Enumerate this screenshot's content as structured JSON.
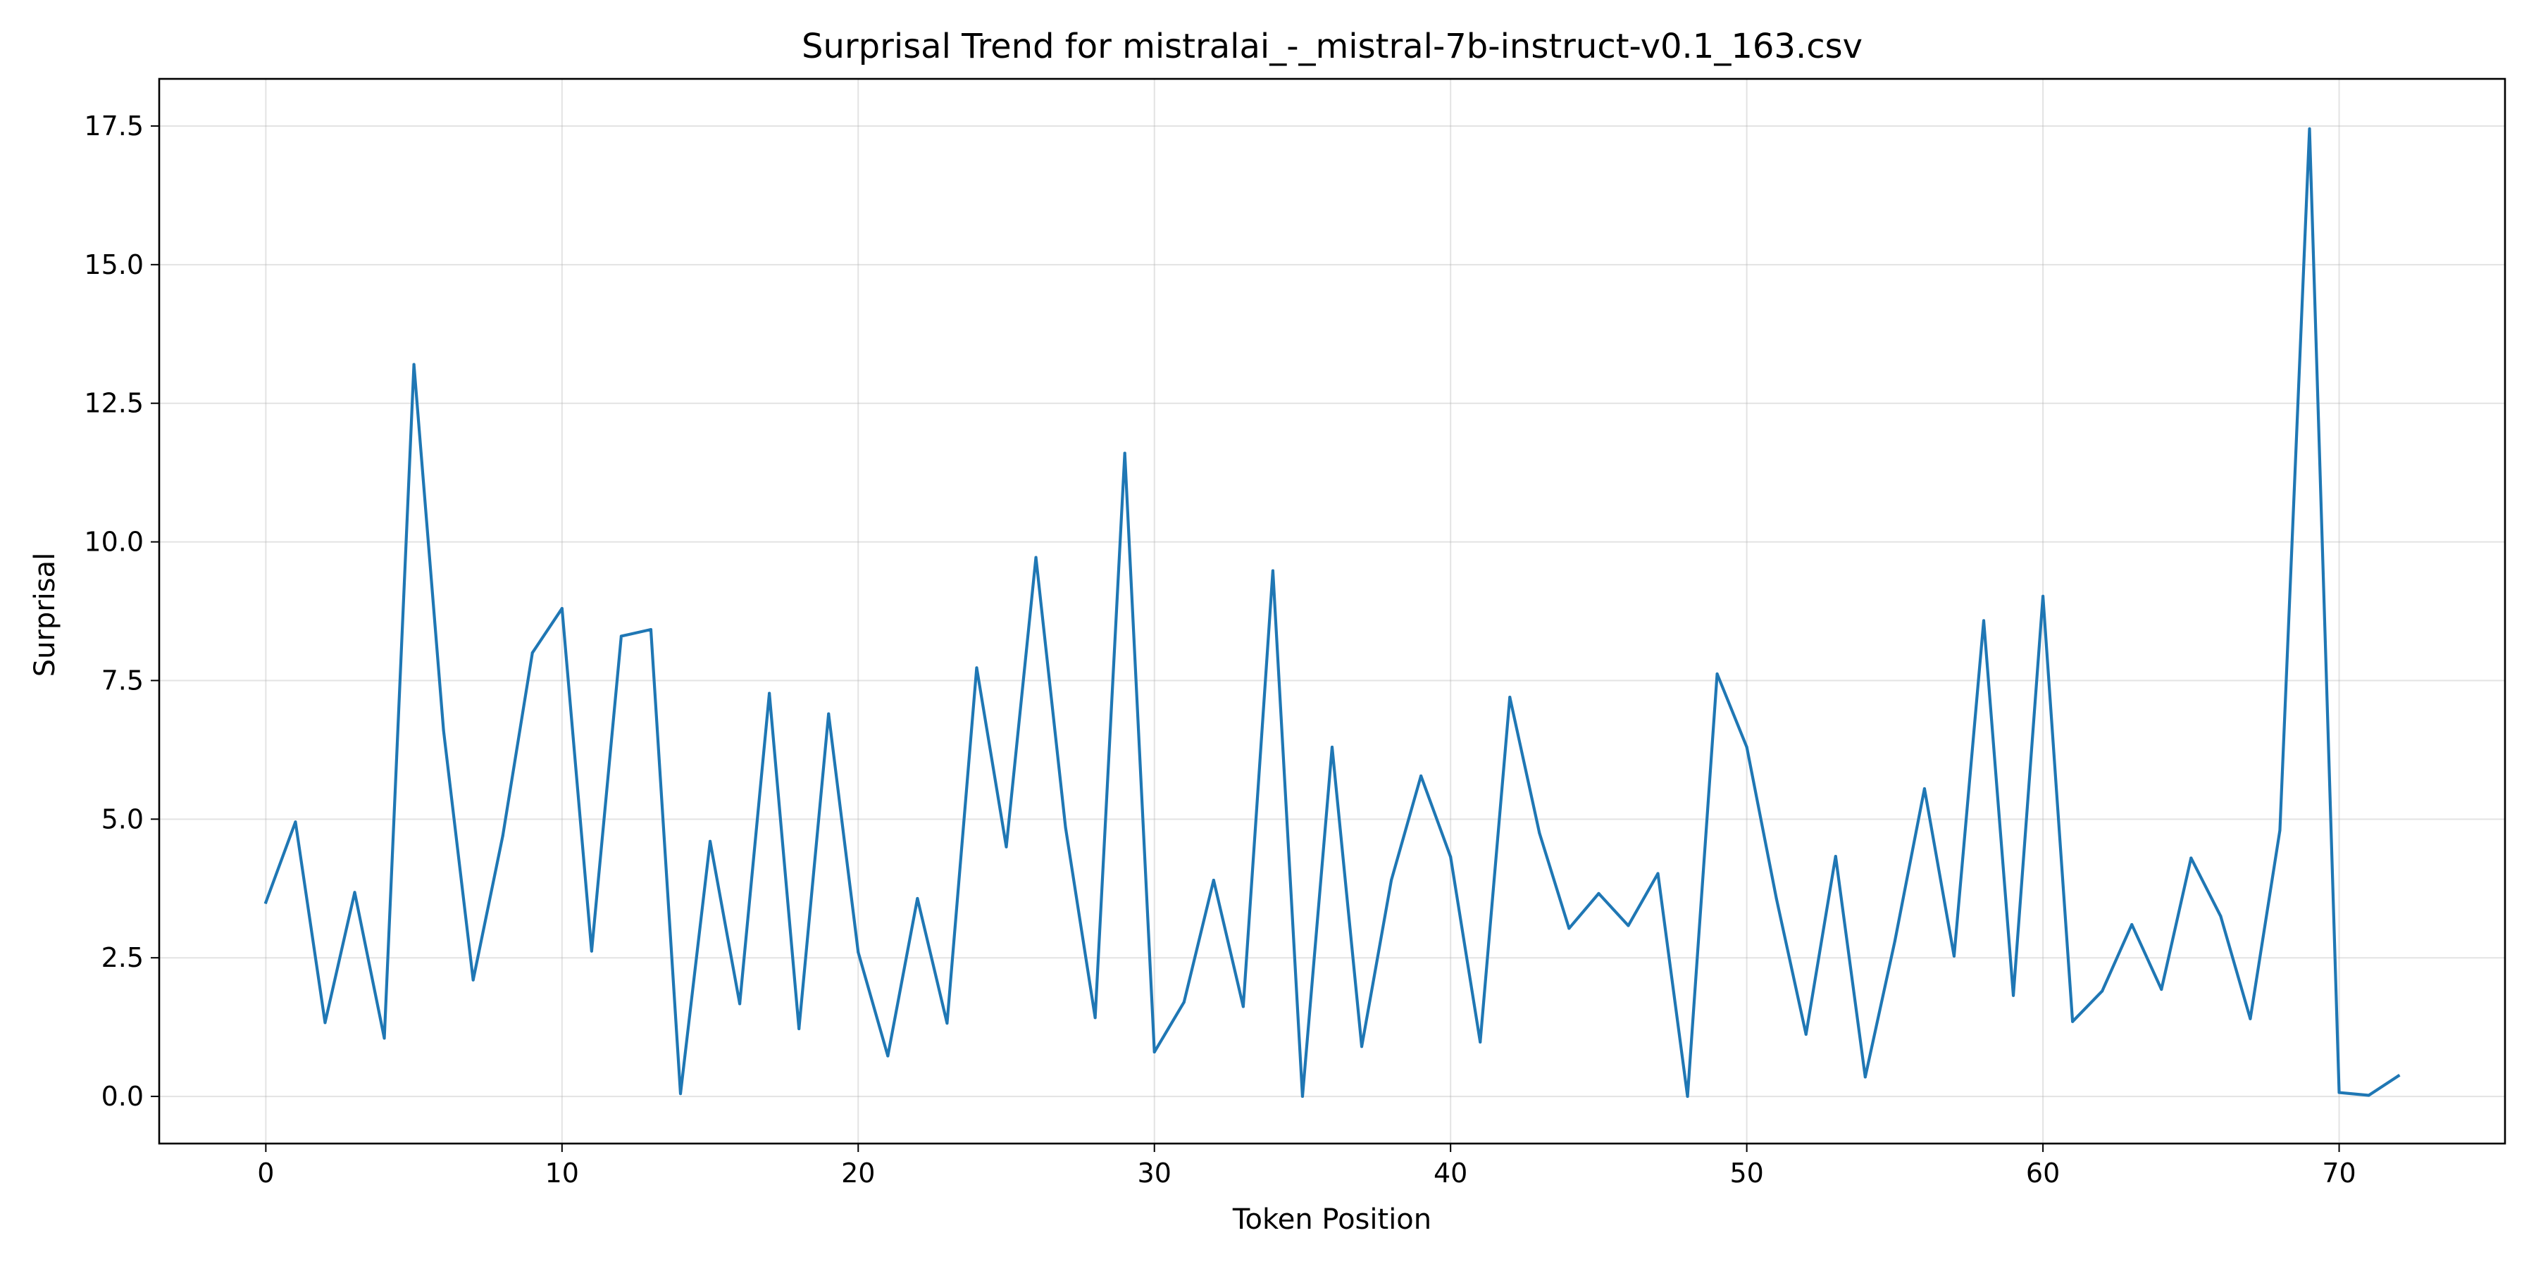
{
  "chart_data": {
    "type": "line",
    "title": "Surprisal Trend for mistralai_-_mistral-7b-instruct-v0.1_163.csv",
    "xlabel": "Token Position",
    "ylabel": "Surprisal",
    "xlim": [
      -3.6,
      75.6
    ],
    "ylim": [
      -0.85,
      18.35
    ],
    "xticks": [
      0,
      10,
      20,
      30,
      40,
      50,
      60,
      70
    ],
    "yticks": [
      0.0,
      2.5,
      5.0,
      7.5,
      10.0,
      12.5,
      15.0,
      17.5
    ],
    "ytick_labels": [
      "0.0",
      "2.5",
      "5.0",
      "7.5",
      "10.0",
      "12.5",
      "15.0",
      "17.5"
    ],
    "grid": true,
    "series": [
      {
        "color": "#1f77b4",
        "x": [
          0,
          1,
          2,
          3,
          4,
          5,
          6,
          7,
          8,
          9,
          10,
          11,
          12,
          13,
          14,
          15,
          16,
          17,
          18,
          19,
          20,
          21,
          22,
          23,
          24,
          25,
          26,
          27,
          28,
          29,
          30,
          31,
          32,
          33,
          34,
          35,
          36,
          37,
          38,
          39,
          40,
          41,
          42,
          43,
          44,
          45,
          46,
          47,
          48,
          49,
          50,
          51,
          52,
          53,
          54,
          55,
          56,
          57,
          58,
          59,
          60,
          61,
          62,
          63,
          64,
          65,
          66,
          67,
          68,
          69,
          70,
          71,
          72
        ],
        "values": [
          3.5,
          4.95,
          1.33,
          3.68,
          1.05,
          13.2,
          6.6,
          2.1,
          4.7,
          8.0,
          8.8,
          2.62,
          8.3,
          8.42,
          0.05,
          4.6,
          1.67,
          7.27,
          1.22,
          6.9,
          2.6,
          0.73,
          3.57,
          1.32,
          7.73,
          4.5,
          9.72,
          4.85,
          1.42,
          11.6,
          0.8,
          1.7,
          3.9,
          1.62,
          9.48,
          0.0,
          6.3,
          0.9,
          3.9,
          5.78,
          4.32,
          0.98,
          7.2,
          4.75,
          3.03,
          3.66,
          3.08,
          4.02,
          0.0,
          7.62,
          6.3,
          3.57,
          1.12,
          4.33,
          0.35,
          2.8,
          5.55,
          2.53,
          8.58,
          1.82,
          9.02,
          1.35,
          1.9,
          3.1,
          1.93,
          4.3,
          3.25,
          1.4,
          4.8,
          17.45,
          0.07,
          0.02,
          0.37
        ]
      }
    ]
  }
}
